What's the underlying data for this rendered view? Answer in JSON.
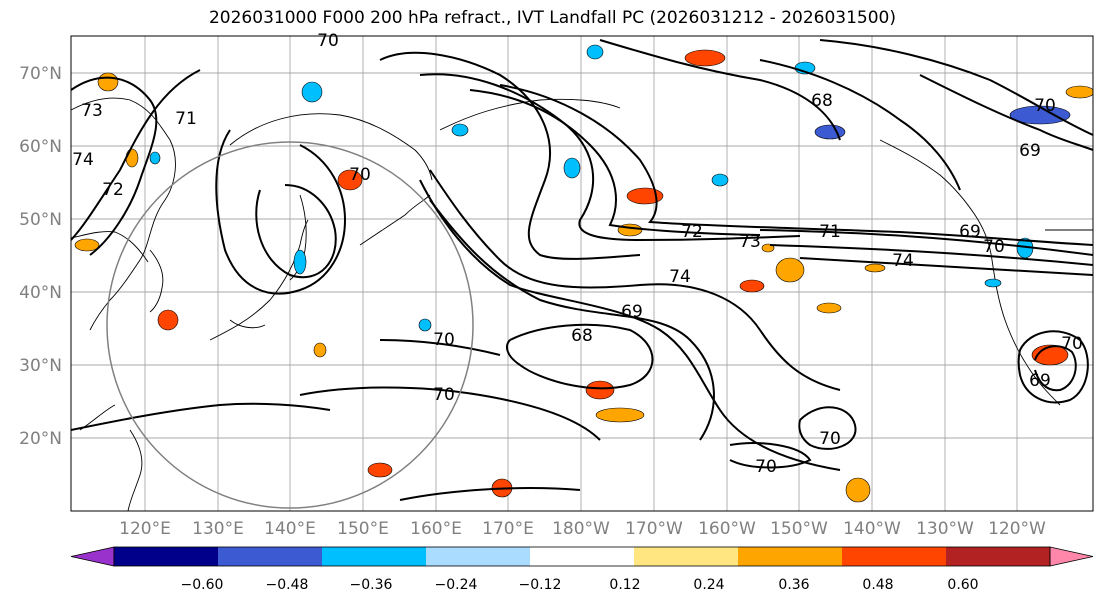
{
  "title": "2026031000 F000 200 hPa refract., IVT Landfall PC (2026031212 - 2026031500)",
  "lat_labels": [
    "70°N",
    "60°N",
    "50°N",
    "40°N",
    "30°N",
    "20°N"
  ],
  "lon_labels": [
    "120°E",
    "130°E",
    "140°E",
    "150°E",
    "160°E",
    "170°E",
    "180°W",
    "170°W",
    "160°W",
    "150°W",
    "140°W",
    "130°W",
    "120°W"
  ],
  "contour_labels": [
    "70",
    "73",
    "71",
    "74",
    "72",
    "68",
    "69",
    "70",
    "72",
    "73",
    "71",
    "69",
    "70",
    "74",
    "74",
    "69",
    "68",
    "70",
    "70",
    "70",
    "70",
    "70",
    "69",
    "70"
  ],
  "colorbar": {
    "ticks": [
      "−0.60",
      "−0.48",
      "−0.36",
      "−0.24",
      "−0.12",
      "0.12",
      "0.24",
      "0.36",
      "0.48",
      "0.60"
    ],
    "colors": [
      "#9932cc",
      "#00008b",
      "#3c5ad2",
      "#00bfff",
      "#aadcff",
      "#ffffff",
      "#ffe680",
      "#ffa500",
      "#ff4500",
      "#b22222",
      "#ff88aa"
    ]
  },
  "colors": {
    "contour": "#000000",
    "grid": "#999999",
    "coast": "#000000",
    "circle": "#808080",
    "axis_label": "#808080"
  }
}
